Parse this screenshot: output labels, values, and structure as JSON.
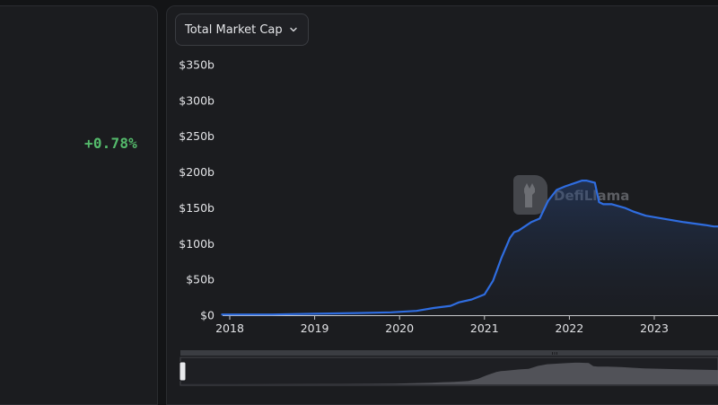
{
  "left_panel": {
    "change": "+0.78%"
  },
  "selector": {
    "label": "Total Market Cap",
    "icon": "chevron-down-icon"
  },
  "watermark": {
    "text": "DefiLlama"
  },
  "colors": {
    "line": "#2f6de0",
    "positive": "#54ba6b",
    "background": "#131416",
    "panel": "#1b1c1f"
  },
  "chart_data": {
    "type": "area",
    "title": "",
    "xlabel": "",
    "ylabel": "",
    "y_ticks": [
      "$0",
      "$50b",
      "$100b",
      "$150b",
      "$200b",
      "$250b",
      "$300b",
      "$350b"
    ],
    "x_ticks": [
      "2018",
      "2019",
      "2020",
      "2021",
      "2022",
      "2023"
    ],
    "ylim": [
      0,
      350
    ],
    "y_unit": "billions USD",
    "grid": false,
    "series": [
      {
        "x": [
          2017.9,
          2018.5,
          2019.0,
          2019.5,
          2019.9,
          2020.2,
          2020.4,
          2020.6,
          2020.7,
          2020.85,
          2021.0,
          2021.1,
          2021.2,
          2021.3,
          2021.35,
          2021.4,
          2021.45,
          2021.55,
          2021.65,
          2021.75,
          2021.85,
          2021.95,
          2022.05,
          2022.15,
          2022.2,
          2022.3,
          2022.35,
          2022.4,
          2022.5,
          2022.65,
          2022.75,
          2022.9,
          2023.1,
          2023.35,
          2023.6,
          2023.7
        ],
        "y": [
          1,
          1,
          2,
          3,
          4,
          6,
          10,
          13,
          18,
          22,
          29,
          48,
          80,
          108,
          116,
          118,
          122,
          130,
          135,
          160,
          175,
          180,
          184,
          188,
          188,
          185,
          158,
          155,
          155,
          150,
          145,
          139,
          135,
          130,
          126,
          124
        ]
      }
    ]
  }
}
